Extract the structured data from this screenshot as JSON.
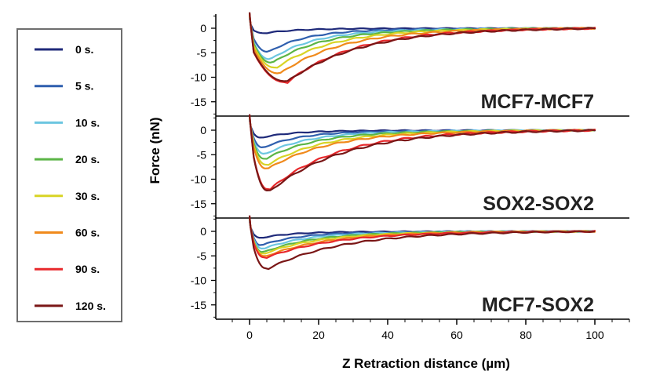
{
  "chart_data": {
    "type": "line",
    "xlabel": "Z Retraction distance (µm)",
    "ylabel": "Force (nN)",
    "xlim": [
      -10,
      110
    ],
    "x_ticks": [
      "0",
      "20",
      "40",
      "60",
      "80",
      "100"
    ],
    "ylim": [
      -17,
      3
    ],
    "y_ticks": [
      "0",
      "-5",
      "-10",
      "-15"
    ],
    "legend_position": "left",
    "series": [
      {
        "name": "0 s.",
        "color": "#1f2a7a"
      },
      {
        "name": "5 s.",
        "color": "#2f5fae"
      },
      {
        "name": "10 s.",
        "color": "#6cc6e0"
      },
      {
        "name": "20 s.",
        "color": "#5bb546"
      },
      {
        "name": "30 s.",
        "color": "#d8d425"
      },
      {
        "name": "60 s.",
        "color": "#f08a1c"
      },
      {
        "name": "90 s.",
        "color": "#e8282b"
      },
      {
        "name": "120 s.",
        "color": "#7a1616"
      }
    ],
    "panels": [
      {
        "title": "MCF7-MCF7",
        "curves": [
          {
            "series": "0 s.",
            "min_x": 4,
            "min_y": -1.0
          },
          {
            "series": "5 s.",
            "min_x": 5,
            "min_y": -4.8
          },
          {
            "series": "10 s.",
            "min_x": 5.5,
            "min_y": -6.3
          },
          {
            "series": "20 s.",
            "min_x": 6,
            "min_y": -7.0
          },
          {
            "series": "30 s.",
            "min_x": 7,
            "min_y": -8.0
          },
          {
            "series": "60 s.",
            "min_x": 8,
            "min_y": -9.2
          },
          {
            "series": "90 s.",
            "min_x": 10,
            "min_y": -11.0
          },
          {
            "series": "120 s.",
            "min_x": 10,
            "min_y": -10.8
          }
        ]
      },
      {
        "title": "SOX2-SOX2",
        "curves": [
          {
            "series": "0 s.",
            "min_x": 3,
            "min_y": -1.5
          },
          {
            "series": "5 s.",
            "min_x": 3.5,
            "min_y": -3.5
          },
          {
            "series": "10 s.",
            "min_x": 4,
            "min_y": -4.8
          },
          {
            "series": "20 s.",
            "min_x": 4,
            "min_y": -5.8
          },
          {
            "series": "30 s.",
            "min_x": 4.5,
            "min_y": -7.0
          },
          {
            "series": "60 s.",
            "min_x": 4.5,
            "min_y": -7.8
          },
          {
            "series": "90 s.",
            "min_x": 5,
            "min_y": -12.0
          },
          {
            "series": "120 s.",
            "min_x": 5,
            "min_y": -12.3
          }
        ]
      },
      {
        "title": "MCF7-SOX2",
        "curves": [
          {
            "series": "0 s.",
            "min_x": 3,
            "min_y": -1.3
          },
          {
            "series": "5 s.",
            "min_x": 3,
            "min_y": -2.8
          },
          {
            "series": "10 s.",
            "min_x": 3.5,
            "min_y": -3.5
          },
          {
            "series": "20 s.",
            "min_x": 3.5,
            "min_y": -4.2
          },
          {
            "series": "30 s.",
            "min_x": 3.5,
            "min_y": -4.5
          },
          {
            "series": "60 s.",
            "min_x": 4,
            "min_y": -5.0
          },
          {
            "series": "90 s.",
            "min_x": 4,
            "min_y": -5.3
          },
          {
            "series": "120 s.",
            "min_x": 4.5,
            "min_y": -7.5
          }
        ]
      }
    ]
  }
}
